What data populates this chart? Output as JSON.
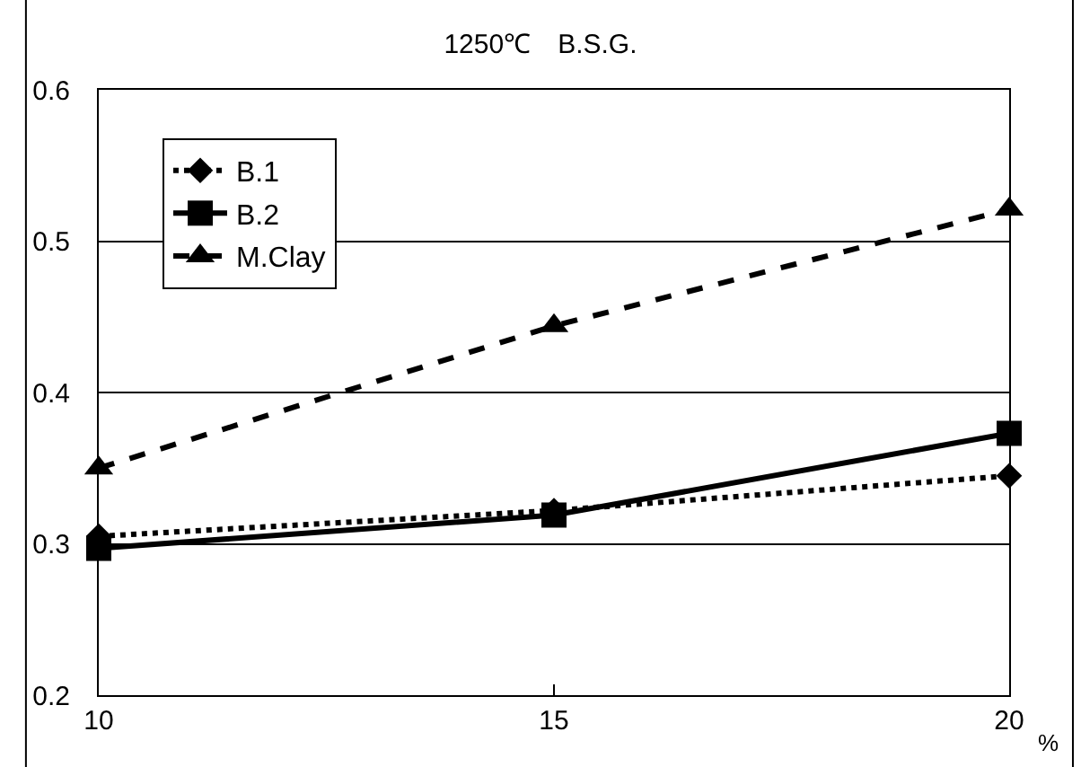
{
  "chart_data": {
    "type": "line",
    "title": "1250℃　B.S.G.",
    "xlabel": "%",
    "x": [
      10,
      15,
      20
    ],
    "series": [
      {
        "name": "B.1",
        "color": "#000000",
        "values": [
          0.305,
          0.322,
          0.345
        ],
        "marker": "diamond",
        "line_style": "dotted"
      },
      {
        "name": "B.2",
        "color": "#000000",
        "values": [
          0.297,
          0.319,
          0.373
        ],
        "marker": "square",
        "line_style": "solid"
      },
      {
        "name": "M.Clay",
        "color": "#000000",
        "values": [
          0.35,
          0.444,
          0.521
        ],
        "marker": "triangle",
        "line_style": "dashed"
      }
    ],
    "xlim": [
      10,
      20
    ],
    "xticks": [
      10,
      15,
      20
    ],
    "ylim": [
      0.2,
      0.6
    ],
    "yticks": [
      0.2,
      0.3,
      0.4,
      0.5,
      0.6
    ],
    "grid": "y",
    "legend": "top left"
  }
}
